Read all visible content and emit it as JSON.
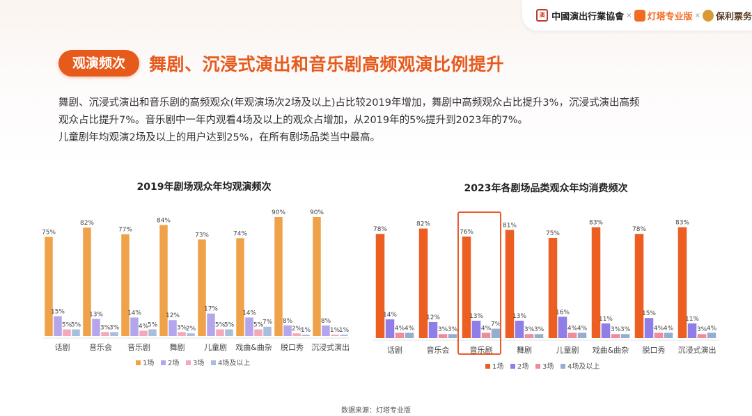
{
  "logos": {
    "association": "中國演出行業協會",
    "x": "×",
    "dengta": "灯塔专业版",
    "poly": "保利票务"
  },
  "header": {
    "tag": "观演频次",
    "title": "舞剧、沉浸式演出和音乐剧高频观演比例提升"
  },
  "description": [
    "舞剧、沉浸式演出和音乐剧的高频观众(年观演场次2场及以上)占比较2019年增加，舞剧中高频观众占比提升3%，沉浸式演出高频",
    "观众占比提升7%。音乐剧中一年内观看4场及以上的观众占增加，从2019年的5%提升到2023年的7%。",
    "儿童剧年均观演2场及以上的用户达到25%，在所有剧场品类当中最高。"
  ],
  "source": "数据来源：灯塔专业版",
  "chart_data": [
    {
      "type": "bar",
      "title": "2019年剧场观众年均观演频次",
      "categories": [
        "话剧",
        "音乐会",
        "音乐剧",
        "舞剧",
        "儿童剧",
        "戏曲&曲杂",
        "脱口秀",
        "沉浸式演出"
      ],
      "series": [
        {
          "name": "1场",
          "color": "#f0a24a",
          "values": [
            75,
            82,
            77,
            84,
            73,
            74,
            90,
            90
          ]
        },
        {
          "name": "2场",
          "color": "#b3a6ec",
          "values": [
            15,
            13,
            14,
            12,
            17,
            14,
            8,
            8
          ]
        },
        {
          "name": "3场",
          "color": "#f3a9b8",
          "values": [
            5,
            3,
            4,
            3,
            5,
            5,
            2,
            1
          ]
        },
        {
          "name": "4场及以上",
          "color": "#a9bedc",
          "values": [
            5,
            3,
            5,
            2,
            5,
            7,
            1,
            1
          ]
        }
      ],
      "data_labels": [
        [
          "75%",
          "15%",
          "5%",
          "5%"
        ],
        [
          "82%",
          "13%",
          "3%",
          "3%"
        ],
        [
          "77%",
          "14%",
          "4%",
          "5%"
        ],
        [
          "84%",
          "12%",
          "3%",
          "2%"
        ],
        [
          "73%",
          "17%",
          "5%",
          "5%"
        ],
        [
          "74%",
          "14%",
          "5%",
          "7%"
        ],
        [
          "90%",
          "8%",
          "2%",
          "1%"
        ],
        [
          "90%",
          "8%",
          "1%",
          "1%"
        ]
      ],
      "ylim": [
        0,
        100
      ],
      "legend": "bottom",
      "grid": false
    },
    {
      "type": "bar",
      "title": "2023年各剧场品类观众年均消费频次",
      "categories": [
        "话剧",
        "音乐会",
        "音乐剧",
        "舞剧",
        "儿童剧",
        "戏曲&曲杂",
        "脱口秀",
        "沉浸式演出"
      ],
      "series": [
        {
          "name": "1场",
          "color": "#ec5e22",
          "values": [
            78,
            82,
            76,
            81,
            75,
            83,
            78,
            83
          ]
        },
        {
          "name": "2场",
          "color": "#8f7de8",
          "values": [
            14,
            12,
            13,
            13,
            16,
            11,
            15,
            11
          ]
        },
        {
          "name": "3场",
          "color": "#f08c9a",
          "values": [
            4,
            3,
            4,
            3,
            4,
            3,
            4,
            3
          ]
        },
        {
          "name": "4场及以上",
          "color": "#95aed0",
          "values": [
            4,
            3,
            7,
            3,
            4,
            3,
            4,
            4
          ]
        }
      ],
      "data_labels": [
        [
          "78%",
          "14%",
          "4%",
          "4%"
        ],
        [
          "82%",
          "12%",
          "3%",
          "3%"
        ],
        [
          "76%",
          "13%",
          "4%",
          "7%"
        ],
        [
          "81%",
          "13%",
          "3%",
          "3%"
        ],
        [
          "75%",
          "16%",
          "4%",
          "4%"
        ],
        [
          "83%",
          "11%",
          "3%",
          "3%"
        ],
        [
          "78%",
          "15%",
          "4%",
          "4%"
        ],
        [
          "83%",
          "11%",
          "3%",
          "4%"
        ]
      ],
      "highlight_category": "音乐剧",
      "ylim": [
        0,
        100
      ],
      "legend": "bottom",
      "grid": false
    }
  ]
}
